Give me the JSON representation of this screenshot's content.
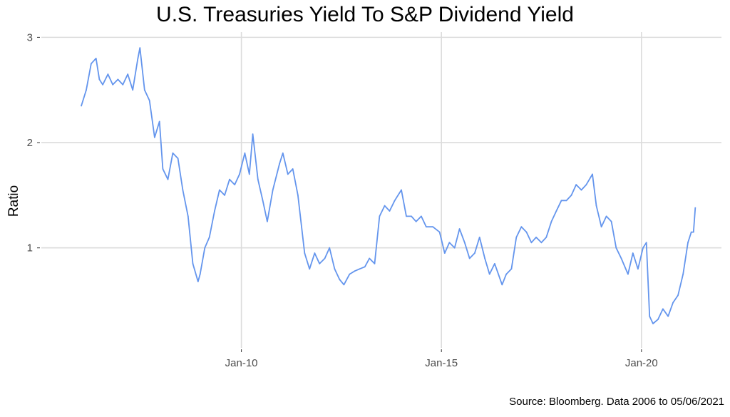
{
  "chart_data": {
    "type": "line",
    "title": "U.S. Treasuries Yield To S&P Dividend Yield",
    "xlabel": "",
    "ylabel": "Ratio",
    "caption": "Source: Bloomberg. Data 2006 to 05/06/2021",
    "xlim": [
      "2005-01-01",
      "2021-12-31"
    ],
    "ylim": [
      0.05,
      3.05
    ],
    "y_ticks": [
      1,
      2,
      3
    ],
    "y_tick_labels": [
      "1",
      "2",
      "3"
    ],
    "x_ticks": [
      "2010-01-01",
      "2015-01-01",
      "2020-01-01"
    ],
    "x_tick_labels": [
      "Jan-10",
      "Jan-15",
      "Jan-20"
    ],
    "grid": true,
    "legend": "none",
    "colors": {
      "line": "#6495ed",
      "grid": "#dcdcdc",
      "tick": "#4d4d4d"
    },
    "series": [
      {
        "x": [
          "2006-01-01",
          "2006-02-15",
          "2006-04-01",
          "2006-05-15",
          "2006-06-15",
          "2006-07-15",
          "2006-09-01",
          "2006-10-15",
          "2006-12-01",
          "2007-01-15",
          "2007-03-01",
          "2007-04-15",
          "2007-06-01",
          "2007-06-20",
          "2007-08-01",
          "2007-09-15",
          "2007-11-01",
          "2007-12-15",
          "2008-01-15",
          "2008-03-01",
          "2008-04-15",
          "2008-06-01",
          "2008-07-15",
          "2008-09-01",
          "2008-10-15",
          "2008-12-01",
          "2008-12-20",
          "2009-02-01",
          "2009-03-15",
          "2009-05-01",
          "2009-06-15",
          "2009-08-01",
          "2009-09-15",
          "2009-11-01",
          "2009-12-15",
          "2010-02-01",
          "2010-03-15",
          "2010-04-15",
          "2010-06-01",
          "2010-07-15",
          "2010-08-25",
          "2010-10-15",
          "2010-12-15",
          "2011-01-15",
          "2011-03-01",
          "2011-04-15",
          "2011-06-01",
          "2011-08-01",
          "2011-09-15",
          "2011-11-01",
          "2011-12-15",
          "2012-02-01",
          "2012-03-15",
          "2012-05-01",
          "2012-06-15",
          "2012-07-25",
          "2012-09-15",
          "2012-11-01",
          "2012-12-15",
          "2013-02-01",
          "2013-03-15",
          "2013-05-01",
          "2013-06-15",
          "2013-08-01",
          "2013-09-15",
          "2013-11-01",
          "2013-12-31",
          "2014-02-15",
          "2014-04-01",
          "2014-05-15",
          "2014-07-01",
          "2014-08-15",
          "2014-10-15",
          "2014-12-15",
          "2015-01-31",
          "2015-03-15",
          "2015-05-01",
          "2015-06-15",
          "2015-08-01",
          "2015-09-15",
          "2015-11-01",
          "2015-12-15",
          "2016-02-01",
          "2016-03-15",
          "2016-05-01",
          "2016-07-08",
          "2016-08-15",
          "2016-10-01",
          "2016-11-15",
          "2016-12-31",
          "2017-02-15",
          "2017-04-01",
          "2017-05-15",
          "2017-07-01",
          "2017-08-15",
          "2017-10-01",
          "2017-11-15",
          "2017-12-31",
          "2018-02-15",
          "2018-04-01",
          "2018-05-15",
          "2018-07-01",
          "2018-08-15",
          "2018-10-10",
          "2018-11-15",
          "2018-12-31",
          "2019-02-15",
          "2019-04-01",
          "2019-05-15",
          "2019-07-01",
          "2019-08-31",
          "2019-10-15",
          "2019-11-30",
          "2020-01-15",
          "2020-02-15",
          "2020-03-15",
          "2020-04-15",
          "2020-05-31",
          "2020-07-15",
          "2020-08-31",
          "2020-10-15",
          "2020-11-30",
          "2021-01-15",
          "2021-02-28",
          "2021-03-31",
          "2021-04-20",
          "2021-05-06"
        ],
        "values": [
          2.35,
          2.5,
          2.75,
          2.8,
          2.6,
          2.55,
          2.65,
          2.55,
          2.6,
          2.55,
          2.65,
          2.5,
          2.8,
          2.9,
          2.5,
          2.4,
          2.05,
          2.2,
          1.75,
          1.65,
          1.9,
          1.85,
          1.55,
          1.3,
          0.85,
          0.68,
          0.75,
          1.0,
          1.1,
          1.35,
          1.55,
          1.5,
          1.65,
          1.6,
          1.7,
          1.9,
          1.7,
          2.08,
          1.65,
          1.45,
          1.25,
          1.55,
          1.8,
          1.9,
          1.7,
          1.75,
          1.5,
          0.95,
          0.8,
          0.95,
          0.85,
          0.9,
          1.0,
          0.8,
          0.7,
          0.65,
          0.75,
          0.78,
          0.8,
          0.82,
          0.9,
          0.85,
          1.3,
          1.4,
          1.35,
          1.45,
          1.55,
          1.3,
          1.3,
          1.25,
          1.3,
          1.2,
          1.2,
          1.15,
          0.95,
          1.05,
          1.0,
          1.18,
          1.05,
          0.9,
          0.95,
          1.1,
          0.9,
          0.75,
          0.85,
          0.65,
          0.75,
          0.8,
          1.1,
          1.2,
          1.15,
          1.05,
          1.1,
          1.05,
          1.1,
          1.25,
          1.35,
          1.45,
          1.45,
          1.5,
          1.6,
          1.55,
          1.6,
          1.7,
          1.4,
          1.2,
          1.3,
          1.25,
          1.0,
          0.9,
          0.75,
          0.95,
          0.8,
          1.0,
          1.05,
          0.35,
          0.28,
          0.32,
          0.42,
          0.35,
          0.48,
          0.55,
          0.75,
          1.05,
          1.15,
          1.15,
          1.38
        ]
      }
    ]
  }
}
